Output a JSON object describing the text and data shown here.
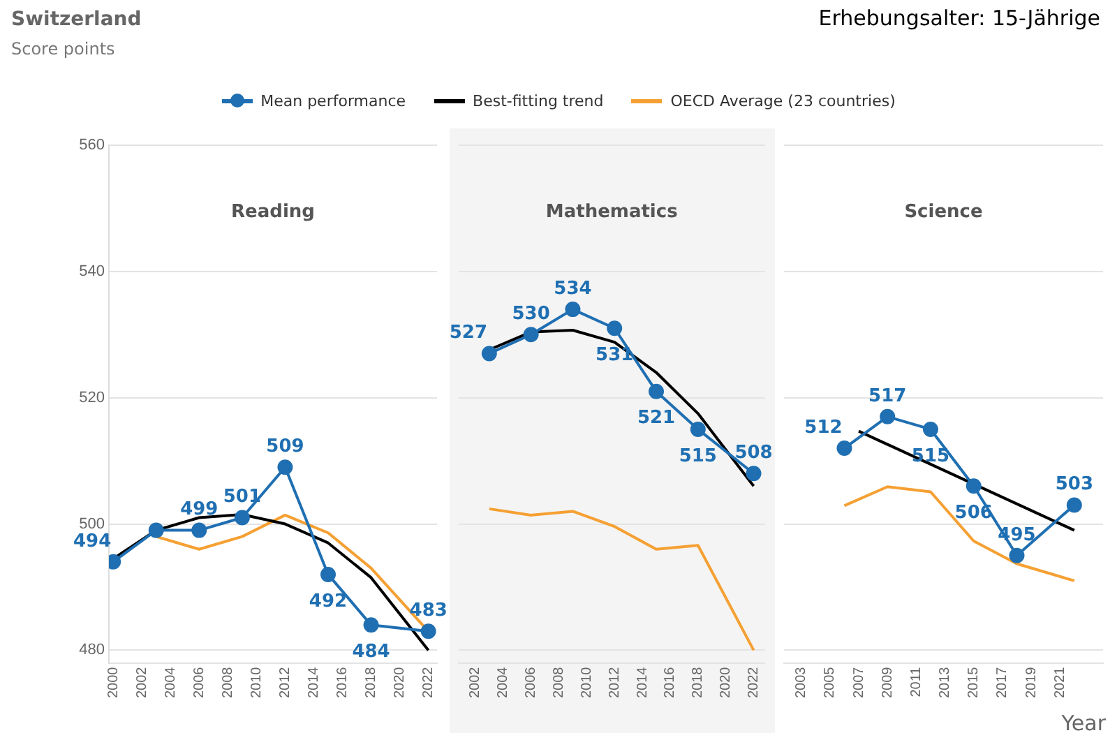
{
  "chart_data": [
    {
      "type": "line",
      "title": "Reading",
      "ylabel": "Score points",
      "annotations": [
        "Switzerland",
        "Erhebungsalter: 15-Jährige"
      ],
      "legend": "top",
      "grid": "y",
      "xlim": [
        1999.7,
        2022.6
      ],
      "xticks": [
        2000,
        2002,
        2004,
        2006,
        2008,
        2010,
        2012,
        2014,
        2016,
        2018,
        2020,
        2022
      ],
      "ylim": [
        478,
        560
      ],
      "yticks": [
        480,
        500,
        520,
        540,
        560
      ],
      "series": [
        {
          "name": "Mean performance",
          "color": "#1f6fb2",
          "marker": "circle",
          "x": [
            2000,
            2003,
            2006,
            2009,
            2012,
            2015,
            2018,
            2022
          ],
          "values": [
            494,
            499,
            499,
            501,
            509,
            492,
            484,
            483
          ],
          "value_labels": [
            "494",
            null,
            "499",
            "501",
            "509",
            "492",
            "484",
            "483"
          ]
        },
        {
          "name": "Best-fitting trend",
          "color": "#000000",
          "marker": "none",
          "x": [
            2000,
            2003,
            2006,
            2009,
            2012,
            2015,
            2018,
            2022
          ],
          "values": [
            494.5,
            499,
            501,
            501.5,
            500,
            497,
            491.5,
            480
          ]
        },
        {
          "name": "OECD Average (23 countries)",
          "color": "#f5a033",
          "marker": "none",
          "x": [
            2003,
            2006,
            2009,
            2012,
            2015,
            2018,
            2022
          ],
          "values": [
            498,
            496,
            498,
            501.4,
            498.6,
            493,
            483
          ]
        }
      ]
    },
    {
      "type": "line",
      "title": "Mathematics",
      "grid": "y",
      "tick_labels": "x",
      "xlim": [
        2000.8,
        2022.8
      ],
      "xticks": [
        2002,
        2004,
        2006,
        2008,
        2010,
        2012,
        2014,
        2016,
        2018,
        2020,
        2022
      ],
      "ylim": [
        478,
        560
      ],
      "yticks": [
        480,
        500,
        520,
        540,
        560
      ],
      "series": [
        {
          "color": "#1f6fb2",
          "marker": "circle",
          "x": [
            2003,
            2006,
            2009,
            2012,
            2015,
            2018,
            2022
          ],
          "values": [
            527,
            530,
            534,
            531,
            521,
            515,
            508
          ],
          "value_labels": [
            "527",
            "530",
            "534",
            "531",
            "521",
            "515",
            "508"
          ]
        },
        {
          "color": "#000000",
          "marker": "none",
          "x": [
            2003,
            2006,
            2009,
            2012,
            2015,
            2018,
            2022
          ],
          "values": [
            527.6,
            530.4,
            530.7,
            528.8,
            524,
            517.5,
            506
          ]
        },
        {
          "color": "#f5a033",
          "marker": "none",
          "x": [
            2003,
            2006,
            2009,
            2012,
            2015,
            2018,
            2022
          ],
          "values": [
            502.4,
            501.4,
            502,
            499.6,
            496,
            496.6,
            480
          ]
        }
      ]
    },
    {
      "type": "line",
      "title": "Science",
      "xlabel": "Year",
      "grid": "y",
      "tick_labels": "x",
      "xlim": [
        2001.8,
        2024
      ],
      "xticks": [
        2003,
        2005,
        2007,
        2009,
        2011,
        2013,
        2015,
        2017,
        2019,
        2021
      ],
      "ylim": [
        478,
        560
      ],
      "yticks": [
        480,
        500,
        520,
        540,
        560
      ],
      "series": [
        {
          "color": "#1f6fb2",
          "marker": "circle",
          "x": [
            2006,
            2009,
            2012,
            2015,
            2018,
            2022
          ],
          "values": [
            512,
            517,
            515,
            506,
            495,
            503
          ],
          "value_labels": [
            "512",
            "517",
            "515",
            "506",
            "495",
            "503"
          ]
        },
        {
          "color": "#000000",
          "marker": "none",
          "x": [
            2007,
            2022
          ],
          "values": [
            514.7,
            499
          ]
        },
        {
          "color": "#f5a033",
          "marker": "none",
          "x": [
            2006,
            2009,
            2012,
            2015,
            2018,
            2022
          ],
          "values": [
            502.9,
            505.9,
            505.1,
            497.3,
            493.7,
            491
          ]
        }
      ]
    }
  ]
}
